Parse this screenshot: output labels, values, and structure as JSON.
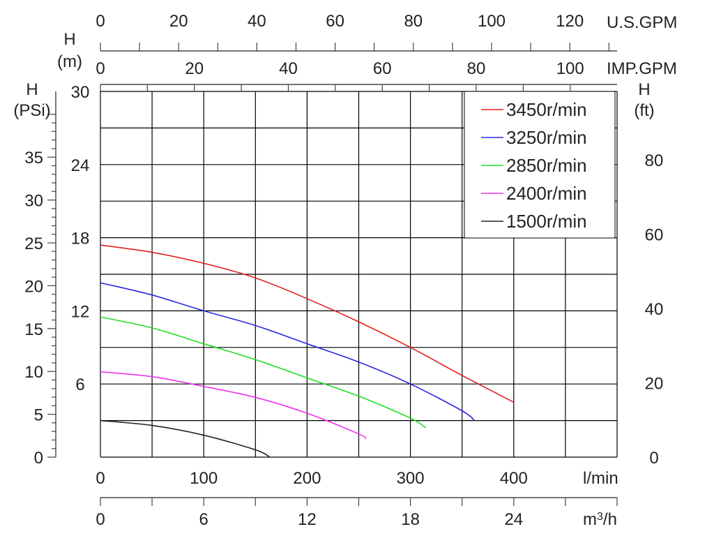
{
  "chart_data": {
    "type": "line",
    "x_axis": {
      "label": "l/min",
      "range": [
        0,
        500
      ],
      "ticks": [
        "0",
        "100",
        "200",
        "300",
        "400"
      ]
    },
    "secondary_x_axes": [
      {
        "label": "m3/h",
        "range": [
          0,
          30
        ],
        "ticks": [
          "0",
          "6",
          "12",
          "18",
          "24"
        ]
      },
      {
        "label": "U.S.GPM",
        "range": [
          0,
          132.09
        ],
        "ticks": [
          "0",
          "20",
          "40",
          "60",
          "80",
          "100",
          "120"
        ]
      },
      {
        "label": "IMP.GPM",
        "range": [
          0,
          109.98
        ],
        "ticks": [
          "0",
          "20",
          "40",
          "60",
          "80",
          "100"
        ]
      }
    ],
    "y_axis": {
      "label": "H (m)",
      "label_line1": "H",
      "label_line2": "(m)",
      "range": [
        0,
        30
      ],
      "ticks": [
        "6",
        "12",
        "18",
        "24",
        "30"
      ]
    },
    "secondary_y_axes": [
      {
        "label": "H (PSi)",
        "label_line1": "H",
        "label_line2": "(PSi)",
        "range": [
          0,
          42.67
        ],
        "ticks": [
          "0",
          "5",
          "10",
          "15",
          "20",
          "25",
          "30",
          "35"
        ]
      },
      {
        "label": "H (ft)",
        "label_line1": "H",
        "label_line2": "(ft)",
        "range": [
          0,
          98.43
        ],
        "ticks": [
          "0",
          "20",
          "40",
          "60",
          "80"
        ]
      }
    ],
    "grid": true,
    "legend_position": "top-right",
    "series": [
      {
        "name": "3450r/min",
        "color": "#e02020",
        "x": [
          0,
          50,
          100,
          150,
          200,
          250,
          300,
          350,
          400
        ],
        "y": [
          17.4,
          16.8,
          15.9,
          14.7,
          13.0,
          11.1,
          9.0,
          6.7,
          4.5
        ]
      },
      {
        "name": "3250r/min",
        "color": "#2828e0",
        "x": [
          0,
          50,
          100,
          150,
          200,
          250,
          300,
          350,
          362
        ],
        "y": [
          14.3,
          13.3,
          12.0,
          10.8,
          9.3,
          7.8,
          6.0,
          3.8,
          3.0
        ]
      },
      {
        "name": "2850r/min",
        "color": "#22dd22",
        "x": [
          0,
          50,
          100,
          150,
          200,
          250,
          300,
          315
        ],
        "y": [
          11.5,
          10.6,
          9.3,
          8.0,
          6.5,
          5.0,
          3.2,
          2.4
        ]
      },
      {
        "name": "2400r/min",
        "color": "#ee33ee",
        "x": [
          0,
          50,
          100,
          150,
          200,
          250,
          257
        ],
        "y": [
          7.0,
          6.6,
          5.8,
          4.9,
          3.6,
          1.9,
          1.5
        ]
      },
      {
        "name": "1500r/min",
        "color": "#222222",
        "x": [
          0,
          50,
          100,
          150,
          164
        ],
        "y": [
          3.0,
          2.6,
          1.8,
          0.6,
          0.0
        ]
      }
    ]
  }
}
